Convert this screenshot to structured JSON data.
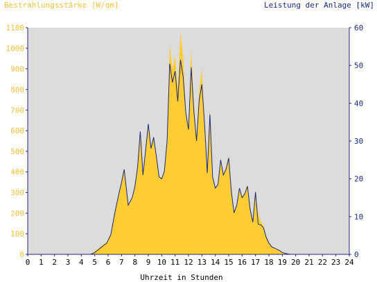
{
  "colors": {
    "plot_bg": "#dcdcdc",
    "irradiance_fill": "#ffcc33",
    "power_line": "#1a2a7a",
    "left_axis_text": "#f5c242",
    "right_axis_text": "#1a2a7a",
    "axis": "#1a2a7a"
  },
  "chart_data": {
    "type": "area",
    "title_left": "Bestrahlungsstärke [W/qm]",
    "title_right": "Leistung der Anlage [kW]",
    "xlabel": "Uhrzeit in Stunden",
    "xlim": [
      0,
      24
    ],
    "ylim_left": [
      0,
      1100
    ],
    "ylim_right": [
      0,
      60
    ],
    "x_ticks": [
      "0",
      "1",
      "2",
      "3",
      "4",
      "5",
      "6",
      "7",
      "8",
      "9",
      "10",
      "11",
      "12",
      "13",
      "14",
      "15",
      "16",
      "17",
      "18",
      "19",
      "20",
      "21",
      "22",
      "23",
      "24"
    ],
    "y_left_ticks": [
      "0",
      "100",
      "200",
      "300",
      "400",
      "500",
      "600",
      "700",
      "800",
      "900",
      "1000",
      "1100"
    ],
    "y_right_ticks": [
      "0",
      "10",
      "20",
      "30",
      "40",
      "50",
      "60"
    ],
    "grid": false,
    "series": [
      {
        "name": "Bestrahlungsstärke [W/qm]",
        "axis": "left",
        "x": [
          0,
          4.7,
          5.0,
          5.3,
          5.6,
          5.9,
          6.2,
          6.5,
          6.8,
          7.0,
          7.2,
          7.5,
          7.8,
          8.0,
          8.2,
          8.4,
          8.6,
          8.8,
          9.0,
          9.2,
          9.4,
          9.6,
          9.8,
          10.0,
          10.2,
          10.4,
          10.6,
          10.8,
          11.0,
          11.2,
          11.4,
          11.6,
          11.8,
          12.0,
          12.2,
          12.4,
          12.6,
          12.8,
          13.0,
          13.2,
          13.4,
          13.6,
          13.8,
          14.0,
          14.2,
          14.4,
          14.6,
          14.8,
          15.0,
          15.2,
          15.4,
          15.6,
          15.8,
          16.0,
          16.2,
          16.4,
          16.6,
          16.8,
          17.0,
          17.2,
          17.4,
          17.6,
          17.8,
          18.0,
          18.2,
          18.5,
          18.8,
          19.0,
          19.3,
          19.6,
          20.0,
          24
        ],
        "y": [
          0,
          0,
          15,
          30,
          45,
          60,
          100,
          210,
          300,
          350,
          410,
          240,
          280,
          330,
          420,
          580,
          390,
          500,
          620,
          520,
          560,
          470,
          380,
          370,
          400,
          550,
          1020,
          900,
          960,
          800,
          1080,
          960,
          700,
          600,
          1000,
          740,
          560,
          800,
          900,
          640,
          400,
          700,
          380,
          320,
          340,
          460,
          390,
          420,
          480,
          310,
          200,
          240,
          320,
          280,
          300,
          340,
          220,
          160,
          300,
          200,
          160,
          140,
          90,
          60,
          40,
          30,
          20,
          10,
          5,
          0,
          0,
          0
        ]
      },
      {
        "name": "Leistung der Anlage [kW]",
        "axis": "right",
        "x": [
          0,
          4.7,
          5.0,
          5.3,
          5.6,
          5.9,
          6.2,
          6.5,
          6.8,
          7.0,
          7.2,
          7.5,
          7.8,
          8.0,
          8.2,
          8.4,
          8.6,
          8.8,
          9.0,
          9.2,
          9.4,
          9.6,
          9.8,
          10.0,
          10.2,
          10.4,
          10.6,
          10.8,
          11.0,
          11.2,
          11.4,
          11.6,
          11.8,
          12.0,
          12.2,
          12.4,
          12.6,
          12.8,
          13.0,
          13.2,
          13.4,
          13.6,
          13.8,
          14.0,
          14.2,
          14.4,
          14.6,
          14.8,
          15.0,
          15.2,
          15.4,
          15.6,
          15.8,
          16.0,
          16.2,
          16.4,
          16.6,
          16.8,
          17.0,
          17.2,
          17.4,
          17.6,
          17.8,
          18.0,
          18.2,
          18.5,
          18.8,
          19.0,
          19.3,
          19.6,
          20.0,
          24
        ],
        "y": [
          0,
          0,
          0.5,
          1.3,
          2.2,
          3.0,
          5.2,
          11.0,
          16.0,
          19.0,
          22.5,
          13.0,
          15.0,
          18.0,
          23.0,
          32.5,
          21.0,
          27.5,
          34.5,
          28.0,
          31.0,
          26.0,
          20.5,
          20.0,
          22.0,
          30.0,
          50.5,
          45.5,
          48.5,
          40.5,
          51.5,
          47.0,
          37.5,
          33.0,
          49.5,
          38.0,
          30.0,
          41.0,
          45.0,
          34.5,
          21.5,
          37.0,
          20.5,
          17.5,
          18.5,
          25.0,
          21.0,
          22.5,
          25.5,
          16.5,
          11.0,
          13.0,
          17.5,
          15.0,
          16.0,
          18.0,
          12.0,
          8.5,
          16.5,
          8.0,
          7.8,
          7.0,
          4.5,
          3.0,
          2.0,
          1.5,
          1.0,
          0.5,
          0.2,
          0,
          0,
          0
        ]
      }
    ]
  }
}
